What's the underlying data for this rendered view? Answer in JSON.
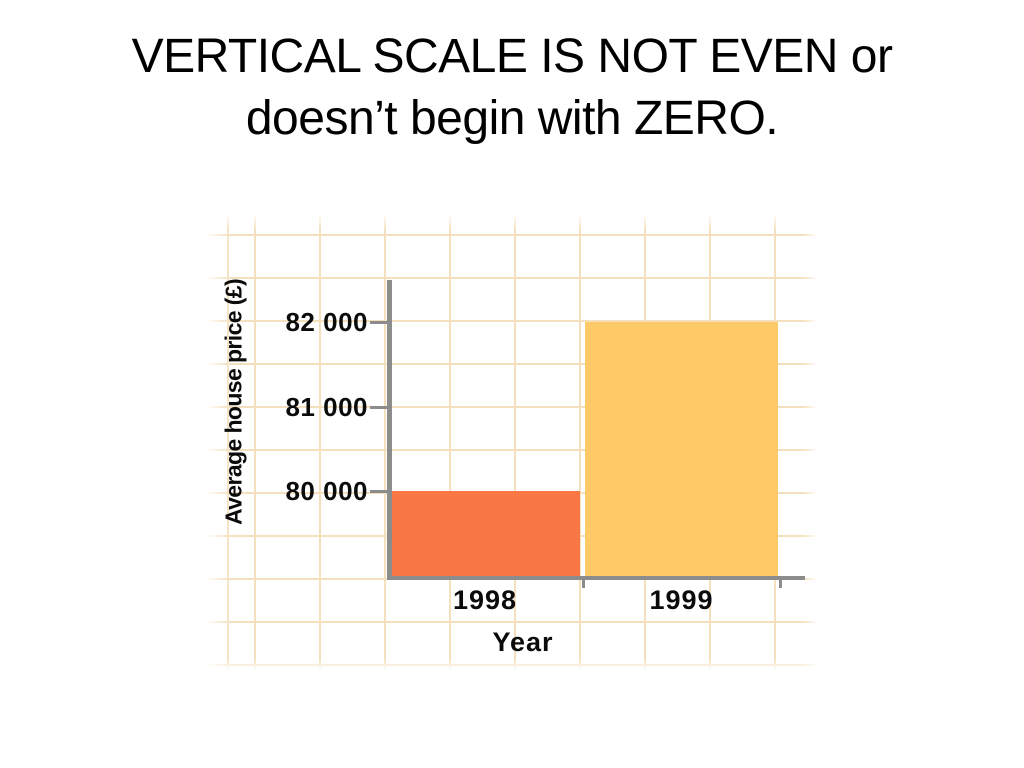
{
  "slide": {
    "title_line1": "VERTICAL SCALE IS NOT EVEN or",
    "title_line2": "doesn’t begin with ZERO."
  },
  "chart_data": {
    "type": "bar",
    "title": "",
    "categories": [
      "1998",
      "1999"
    ],
    "values": [
      80000,
      82000
    ],
    "xlabel": "Year",
    "ylabel": "Average house price (£)",
    "yticks": [
      80000,
      81000,
      82000
    ],
    "ytick_labels": [
      "80 000",
      "81 000",
      "82 000"
    ],
    "ylim": [
      79000,
      82500
    ],
    "grid": true,
    "legend": false,
    "bar_colors": [
      "#F97645",
      "#FDCA67"
    ],
    "grid_color": "#F5E0BD",
    "axis_color": "#8C8C8C",
    "note": "y-axis does not start at zero; baseline is approximately 79000"
  }
}
